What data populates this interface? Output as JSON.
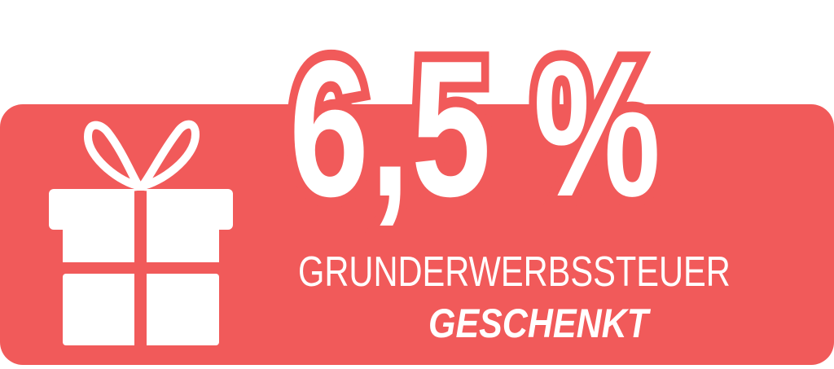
{
  "badge": {
    "percentage": "6,5 %",
    "subtitle": "GRUNDERWERBSSTEUER",
    "emphasis": "GESCHENKT",
    "icon": "gift-icon",
    "colors": {
      "background": "#F15A5A",
      "foreground": "#FFFFFF"
    }
  }
}
